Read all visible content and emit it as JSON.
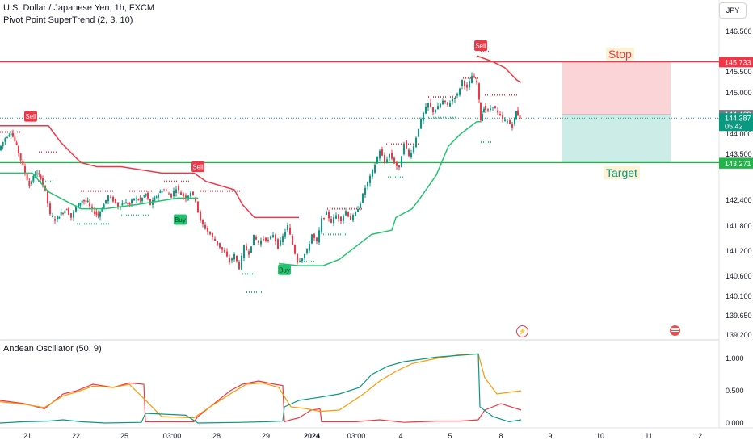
{
  "header": {
    "title": "U.S. Dollar / Japanese Yen, 1h, FXCM",
    "indicator": "Pivot Point SuperTrend (2, 3, 10)",
    "oscillator": "Andean Oscillator (50, 9)",
    "currency": "JPY"
  },
  "colors": {
    "bull": "#089981",
    "bear": "#f23645",
    "supertrend_up": "#22c56f",
    "supertrend_down": "#f23645",
    "stop_zone": "#f9cdd0",
    "target_zone": "#c7ebe4",
    "osc_bull": "#f23645",
    "osc_bear": "#089981",
    "osc_signal": "#ff9800",
    "stop_line": "#f23645",
    "target_line": "#22b34a",
    "last_price": "#089981"
  },
  "chart_data": [
    {
      "type": "candlestick",
      "title": "U.S. Dollar / Japanese Yen, 1h, FXCM",
      "x_ticks": [
        "21",
        "22",
        "25",
        "03:00",
        "28",
        "29",
        "2024",
        "03:00",
        "4",
        "5",
        "8",
        "9",
        "10",
        "11",
        "12"
      ],
      "y_ticks": [
        139.2,
        139.65,
        140.1,
        140.6,
        141.2,
        141.8,
        142.4,
        143.5,
        144.0,
        145.0,
        145.5,
        146.5
      ],
      "ylim": [
        139.2,
        146.5
      ],
      "price_labels": [
        {
          "label": "145.748",
          "value": 145.748,
          "color": "#f23645"
        },
        {
          "label": "145.733",
          "value": 145.733,
          "color": "#f23645"
        },
        {
          "label": "144.469",
          "value": 144.469,
          "color": "#787b86"
        },
        {
          "label": "144.387",
          "value": 144.387,
          "color": "#089981",
          "timer": "05:42"
        },
        {
          "label": "143.299",
          "value": 143.299,
          "color": "#22b34a"
        },
        {
          "label": "143.271",
          "value": 143.271,
          "color": "#22b34a"
        }
      ],
      "ohlc_path": [
        [
          0,
          143.6
        ],
        [
          8,
          143.9
        ],
        [
          15,
          144.05
        ],
        [
          22,
          143.7
        ],
        [
          30,
          143.2
        ],
        [
          38,
          142.75
        ],
        [
          45,
          143.05
        ],
        [
          52,
          142.95
        ],
        [
          58,
          142.6
        ],
        [
          64,
          142.05
        ],
        [
          70,
          141.95
        ],
        [
          77,
          142.1
        ],
        [
          84,
          142.2
        ],
        [
          90,
          142.0
        ],
        [
          96,
          142.25
        ],
        [
          103,
          142.4
        ],
        [
          110,
          142.35
        ],
        [
          116,
          142.15
        ],
        [
          123,
          142.05
        ],
        [
          130,
          142.3
        ],
        [
          136,
          142.5
        ],
        [
          142,
          142.4
        ],
        [
          148,
          142.25
        ],
        [
          155,
          142.35
        ],
        [
          162,
          142.3
        ],
        [
          168,
          142.45
        ],
        [
          175,
          142.4
        ],
        [
          182,
          142.55
        ],
        [
          188,
          142.3
        ],
        [
          195,
          142.5
        ],
        [
          202,
          142.65
        ],
        [
          208,
          142.6
        ],
        [
          214,
          142.5
        ],
        [
          220,
          142.7
        ],
        [
          226,
          142.55
        ],
        [
          232,
          142.45
        ],
        [
          238,
          142.6
        ],
        [
          244,
          142.4
        ],
        [
          250,
          141.9
        ],
        [
          256,
          141.75
        ],
        [
          262,
          141.6
        ],
        [
          268,
          141.45
        ],
        [
          274,
          141.3
        ],
        [
          280,
          141.15
        ],
        [
          286,
          140.95
        ],
        [
          292,
          141.1
        ],
        [
          298,
          140.8
        ],
        [
          304,
          141.3
        ],
        [
          310,
          141.15
        ],
        [
          316,
          141.55
        ],
        [
          322,
          141.4
        ],
        [
          328,
          141.5
        ],
        [
          334,
          141.45
        ],
        [
          340,
          141.6
        ],
        [
          346,
          141.3
        ],
        [
          352,
          141.55
        ],
        [
          358,
          141.8
        ],
        [
          364,
          141.35
        ],
        [
          370,
          140.95
        ],
        [
          376,
          141.05
        ],
        [
          382,
          141.2
        ],
        [
          388,
          141.6
        ],
        [
          394,
          141.4
        ],
        [
          400,
          141.95
        ],
        [
          406,
          142.1
        ],
        [
          412,
          141.9
        ],
        [
          418,
          142.05
        ],
        [
          424,
          141.95
        ],
        [
          430,
          142.15
        ],
        [
          436,
          141.95
        ],
        [
          442,
          142.1
        ],
        [
          448,
          142.35
        ],
        [
          454,
          142.7
        ],
        [
          460,
          142.95
        ],
        [
          466,
          143.25
        ],
        [
          472,
          143.6
        ],
        [
          478,
          143.3
        ],
        [
          484,
          143.5
        ],
        [
          490,
          143.3
        ],
        [
          496,
          143.15
        ],
        [
          502,
          143.8
        ],
        [
          508,
          143.45
        ],
        [
          514,
          143.7
        ],
        [
          520,
          144.15
        ],
        [
          526,
          144.5
        ],
        [
          532,
          144.75
        ],
        [
          538,
          144.55
        ],
        [
          544,
          144.65
        ],
        [
          550,
          144.8
        ],
        [
          556,
          144.7
        ],
        [
          562,
          144.85
        ],
        [
          568,
          144.95
        ],
        [
          574,
          145.3
        ],
        [
          580,
          145.1
        ],
        [
          586,
          145.4
        ],
        [
          592,
          145.25
        ],
        [
          596,
          144.35
        ],
        [
          600,
          144.65
        ],
        [
          606,
          144.55
        ],
        [
          612,
          144.7
        ],
        [
          618,
          144.5
        ],
        [
          624,
          144.35
        ],
        [
          630,
          144.3
        ],
        [
          636,
          144.2
        ],
        [
          640,
          144.55
        ],
        [
          645,
          144.387
        ]
      ],
      "supertrend": {
        "down_1": [
          [
            0,
            144.2
          ],
          [
            60,
            144.2
          ],
          [
            75,
            143.8
          ],
          [
            100,
            143.3
          ],
          [
            120,
            143.2
          ],
          [
            150,
            143.2
          ],
          [
            200,
            143.05
          ],
          [
            240,
            143.05
          ],
          [
            255,
            142.85
          ],
          [
            290,
            142.65
          ],
          [
            300,
            142.3
          ],
          [
            315,
            142.0
          ],
          [
            350,
            142.0
          ],
          [
            370,
            142.0
          ]
        ],
        "up_1": [
          [
            0,
            143.05
          ],
          [
            40,
            143.05
          ],
          [
            60,
            142.6
          ],
          [
            100,
            142.2
          ],
          [
            130,
            142.2
          ],
          [
            170,
            142.3
          ],
          [
            220,
            142.45
          ],
          [
            245,
            142.45
          ]
        ],
        "up_2": [
          [
            345,
            140.9
          ],
          [
            370,
            140.85
          ],
          [
            400,
            140.85
          ],
          [
            420,
            141.0
          ],
          [
            440,
            141.3
          ],
          [
            460,
            141.6
          ],
          [
            485,
            141.7
          ],
          [
            490,
            142.0
          ],
          [
            510,
            142.2
          ],
          [
            520,
            142.45
          ],
          [
            540,
            143.0
          ],
          [
            555,
            143.7
          ],
          [
            570,
            144.0
          ],
          [
            590,
            144.3
          ],
          [
            595,
            144.3
          ]
        ],
        "down_2": [
          [
            590,
            145.9
          ],
          [
            610,
            145.75
          ],
          [
            625,
            145.6
          ],
          [
            640,
            145.3
          ],
          [
            645,
            145.25
          ]
        ]
      },
      "signals": [
        {
          "label": "Sell",
          "x": 38,
          "value": 144.43,
          "kind": "sell"
        },
        {
          "label": "Sell",
          "x": 245,
          "value": 143.2,
          "kind": "sell"
        },
        {
          "label": "Buy",
          "x": 223,
          "value": 141.95,
          "kind": "buy"
        },
        {
          "label": "Buy",
          "x": 352,
          "value": 140.75,
          "kind": "buy"
        },
        {
          "label": "Sell",
          "x": 595,
          "value": 146.15,
          "kind": "sell"
        }
      ],
      "levels": {
        "stop": {
          "label": "Stop",
          "value": 145.748
        },
        "target": {
          "label": "Target",
          "value": 143.299
        },
        "entry": 144.469
      }
    },
    {
      "type": "line",
      "title": "Andean Oscillator (50, 9)",
      "y_ticks": [
        0.0,
        0.5,
        1.0
      ],
      "ylim": [
        -0.05,
        1.15
      ],
      "series": [
        {
          "color": "#f23645",
          "points": [
            [
              0,
              0.35
            ],
            [
              30,
              0.3
            ],
            [
              55,
              0.22
            ],
            [
              78,
              0.45
            ],
            [
              95,
              0.5
            ],
            [
              115,
              0.6
            ],
            [
              140,
              0.55
            ],
            [
              160,
              0.62
            ],
            [
              178,
              0.6
            ],
            [
              180,
              0.02
            ],
            [
              240,
              0.02
            ],
            [
              245,
              0.1
            ],
            [
              265,
              0.3
            ],
            [
              285,
              0.5
            ],
            [
              300,
              0.6
            ],
            [
              320,
              0.65
            ],
            [
              340,
              0.6
            ],
            [
              350,
              0.58
            ],
            [
              352,
              0.02
            ],
            [
              360,
              0.05
            ],
            [
              370,
              0.08
            ],
            [
              385,
              0.2
            ],
            [
              396,
              0.22
            ],
            [
              398,
              0.02
            ],
            [
              440,
              0.02
            ],
            [
              470,
              0.05
            ],
            [
              500,
              0.01
            ],
            [
              540,
              0.03
            ],
            [
              570,
              0.03
            ],
            [
              592,
              0.05
            ],
            [
              600,
              0.2
            ],
            [
              620,
              0.3
            ],
            [
              645,
              0.2
            ]
          ]
        },
        {
          "color": "#ff9800",
          "points": [
            [
              0,
              0.33
            ],
            [
              30,
              0.29
            ],
            [
              55,
              0.24
            ],
            [
              78,
              0.42
            ],
            [
              95,
              0.48
            ],
            [
              115,
              0.57
            ],
            [
              140,
              0.55
            ],
            [
              160,
              0.6
            ],
            [
              178,
              0.38
            ],
            [
              200,
              0.1
            ],
            [
              240,
              0.08
            ],
            [
              260,
              0.25
            ],
            [
              285,
              0.45
            ],
            [
              305,
              0.6
            ],
            [
              325,
              0.62
            ],
            [
              345,
              0.55
            ],
            [
              360,
              0.25
            ],
            [
              380,
              0.22
            ],
            [
              396,
              0.18
            ],
            [
              420,
              0.2
            ],
            [
              450,
              0.45
            ],
            [
              470,
              0.65
            ],
            [
              490,
              0.8
            ],
            [
              510,
              0.92
            ],
            [
              540,
              1.0
            ],
            [
              570,
              1.06
            ],
            [
              592,
              1.07
            ],
            [
              600,
              0.7
            ],
            [
              615,
              0.45
            ],
            [
              645,
              0.5
            ]
          ]
        },
        {
          "color": "#089981",
          "points": [
            [
              0,
              0.0
            ],
            [
              30,
              0.02
            ],
            [
              60,
              0.03
            ],
            [
              78,
              0.05
            ],
            [
              100,
              0.02
            ],
            [
              130,
              0.0
            ],
            [
              175,
              0.01
            ],
            [
              180,
              0.15
            ],
            [
              230,
              0.12
            ],
            [
              245,
              0.0
            ],
            [
              300,
              0.01
            ],
            [
              330,
              0.02
            ],
            [
              350,
              0.03
            ],
            [
              352,
              0.25
            ],
            [
              370,
              0.35
            ],
            [
              396,
              0.4
            ],
            [
              420,
              0.45
            ],
            [
              445,
              0.55
            ],
            [
              460,
              0.75
            ],
            [
              480,
              0.88
            ],
            [
              500,
              0.95
            ],
            [
              540,
              1.02
            ],
            [
              570,
              1.05
            ],
            [
              592,
              1.07
            ],
            [
              594,
              0.25
            ],
            [
              610,
              0.1
            ],
            [
              630,
              0.02
            ],
            [
              645,
              0.05
            ]
          ]
        }
      ]
    }
  ]
}
